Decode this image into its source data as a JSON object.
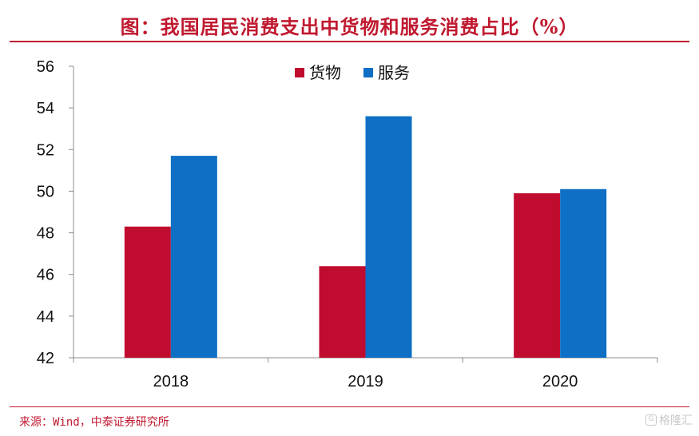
{
  "header": {
    "title": "图：我国居民消费支出中货物和服务消费占比（%）"
  },
  "footer": {
    "source": "来源：Wind，中泰证券研究所",
    "watermark": "格隆汇"
  },
  "colors": {
    "accent": "#c0192f",
    "goods": "#c00d2f",
    "services": "#0e6fc4"
  },
  "chart_data": {
    "type": "bar",
    "title": "图：我国居民消费支出中货物和服务消费占比（%）",
    "categories": [
      "2018",
      "2019",
      "2020"
    ],
    "series": [
      {
        "name": "货物",
        "values": [
          48.3,
          46.4,
          49.9
        ]
      },
      {
        "name": "服务",
        "values": [
          51.7,
          53.6,
          50.1
        ]
      }
    ],
    "ylim": [
      42,
      56
    ],
    "yticks": [
      42,
      44,
      46,
      48,
      50,
      52,
      54,
      56
    ],
    "xlabel": "",
    "ylabel": "",
    "grid": false,
    "legend": "top-center"
  }
}
